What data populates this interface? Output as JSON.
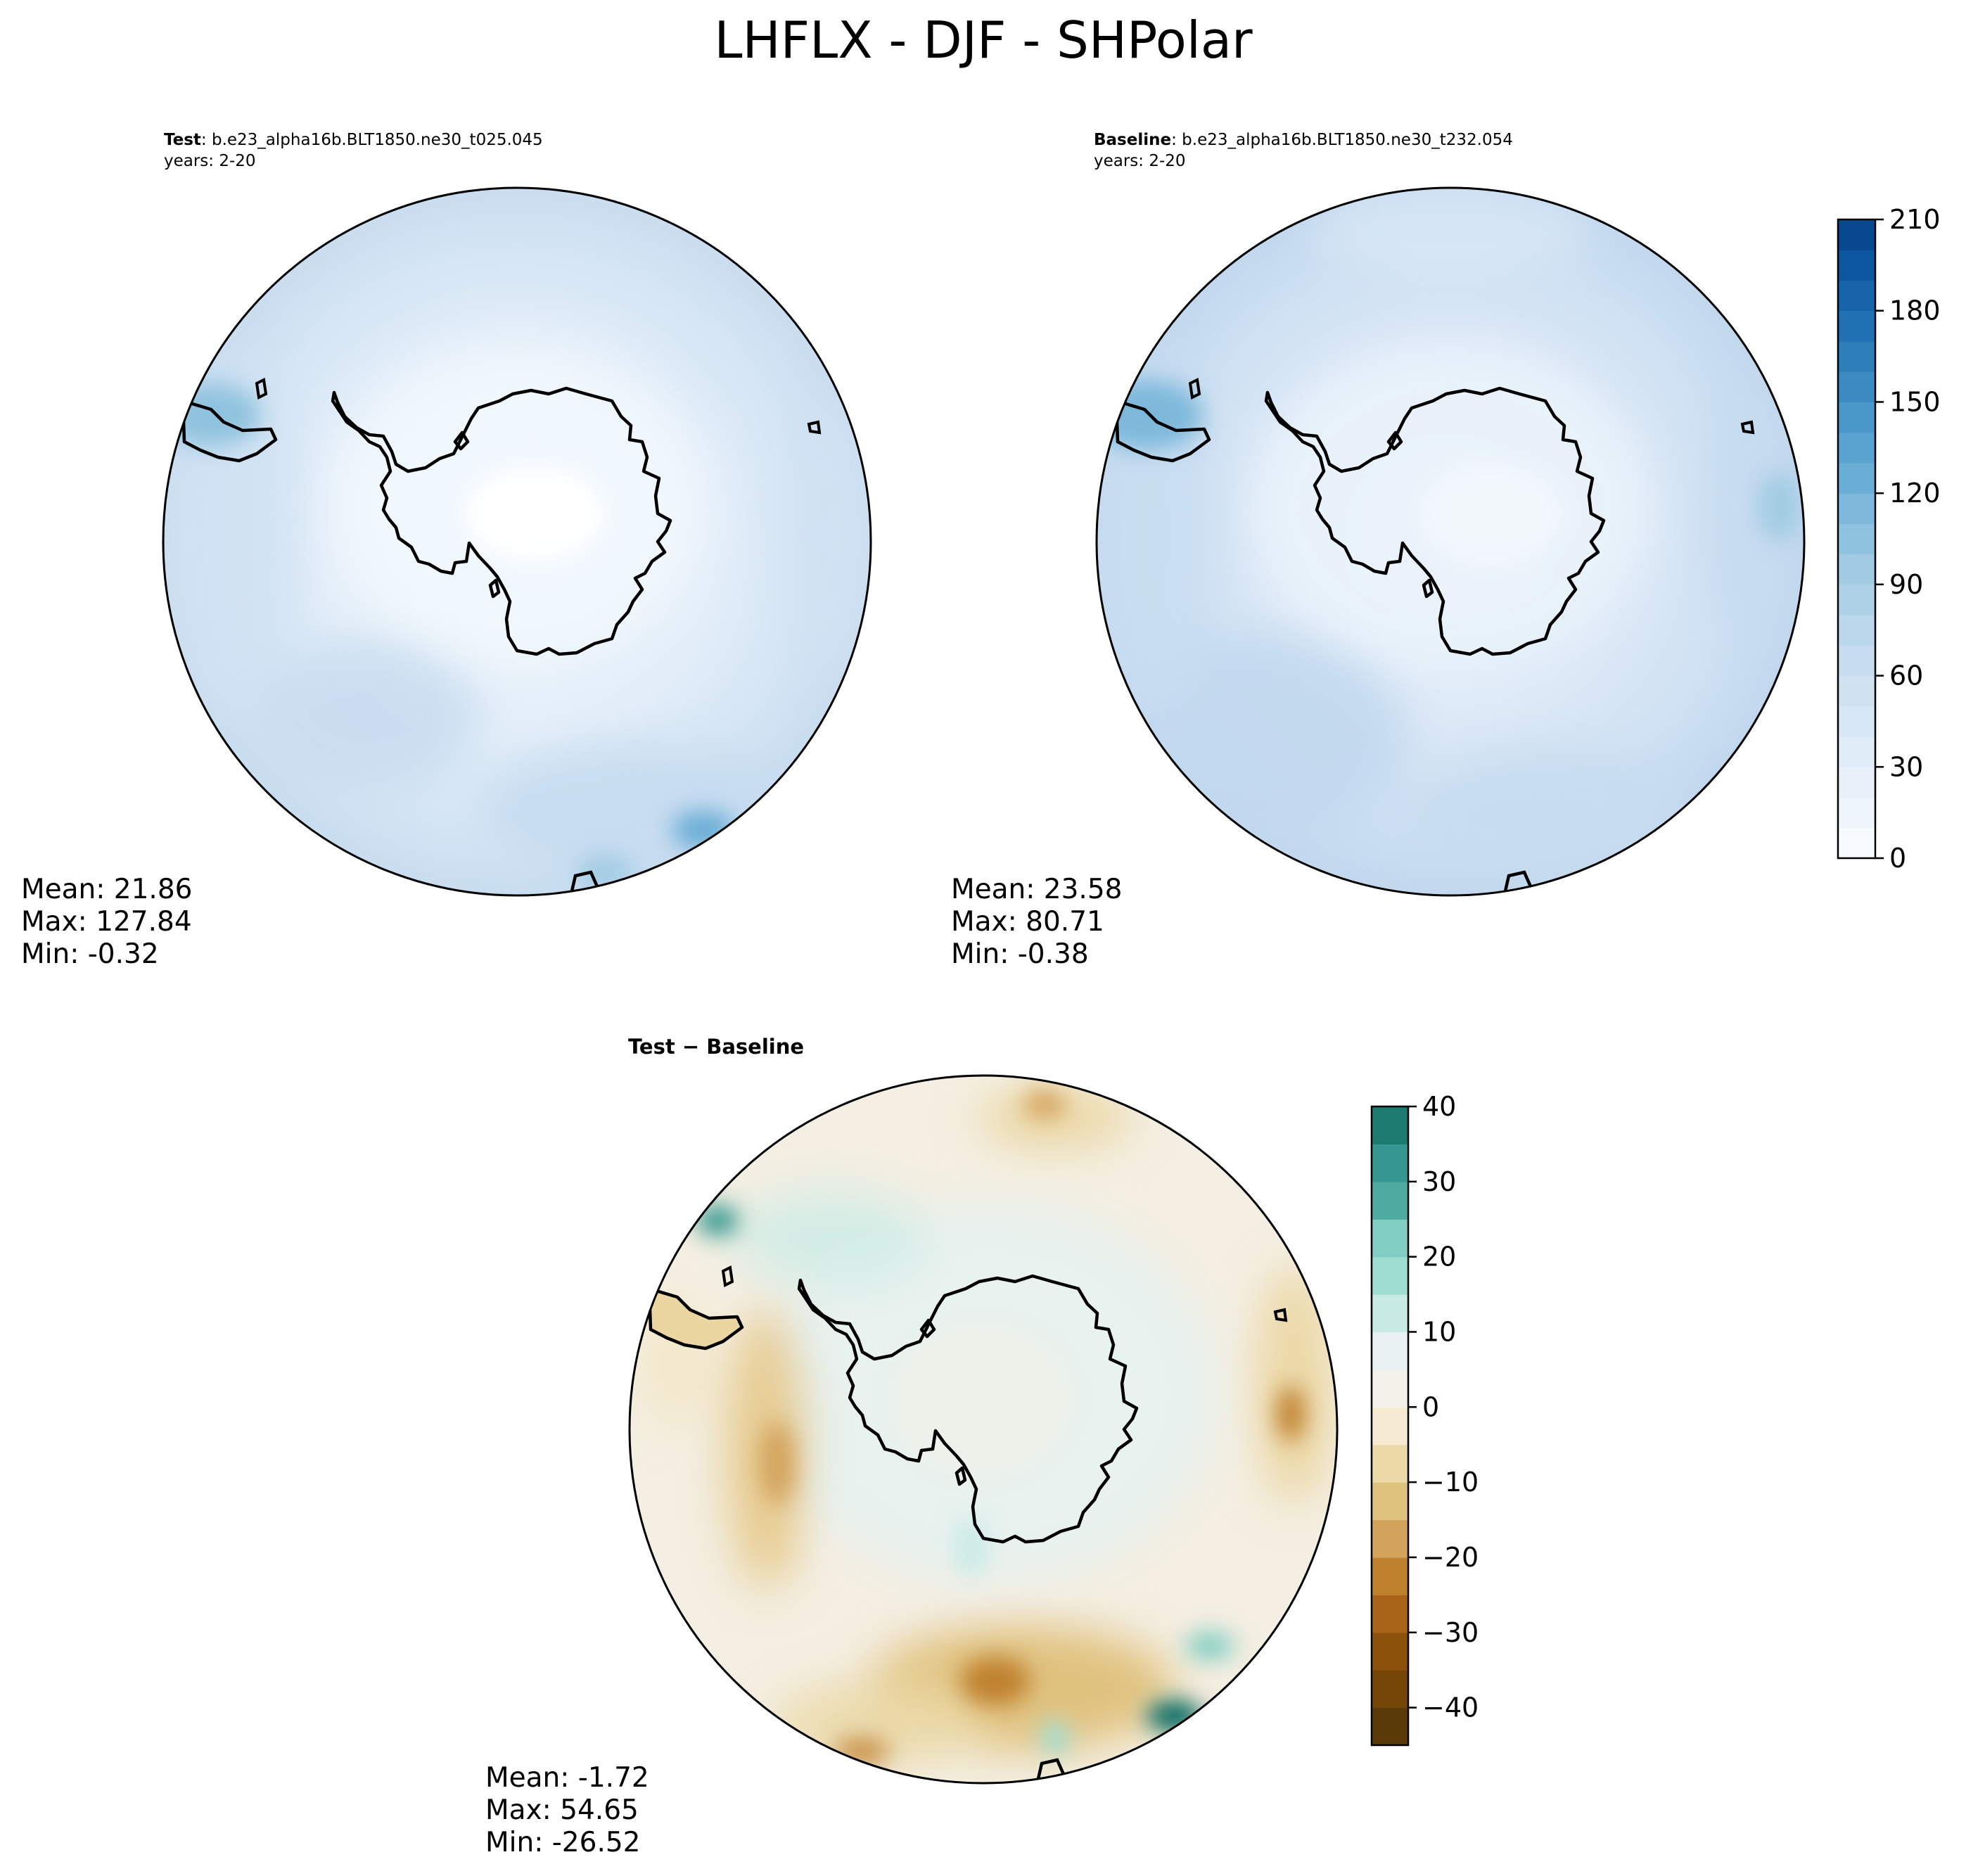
{
  "title": "LHFLX - DJF - SHPolar",
  "panels": [
    {
      "id": "test",
      "label_bold": "Test",
      "label_rest": ": b.e23_alpha16b.BLT1850.ne30_t025.045",
      "years": "years: 2-20",
      "stats": {
        "mean": "Mean: 21.86",
        "max": "Max: 127.84",
        "min": "Min: -0.32"
      }
    },
    {
      "id": "baseline",
      "label_bold": "Baseline",
      "label_rest": ": b.e23_alpha16b.BLT1850.ne30_t232.054",
      "years": "years: 2-20",
      "stats": {
        "mean": "Mean: 23.58",
        "max": "Max: 80.71",
        "min": "Min: -0.38"
      }
    },
    {
      "id": "diff",
      "title": "Test − Baseline",
      "stats": {
        "mean": "Mean: -1.72",
        "max": "Max: 54.65",
        "min": "Min: -26.52"
      }
    }
  ],
  "chart_data": [
    {
      "type": "heatmap",
      "projection": "south-polar-stereographic",
      "colormap": "Blues",
      "panels": [
        "Test",
        "Baseline"
      ],
      "colorbar": {
        "range": [
          0,
          210
        ],
        "levels": [
          0,
          10,
          20,
          30,
          40,
          50,
          60,
          70,
          80,
          90,
          100,
          110,
          120,
          130,
          140,
          150,
          160,
          170,
          180,
          190,
          200,
          210
        ],
        "ticks": [
          "0",
          "30",
          "60",
          "90",
          "120",
          "150",
          "180",
          "210"
        ],
        "colors": [
          "#f7fbff",
          "#eff5fc",
          "#e8f1fa",
          "#e0ecf8",
          "#d8e7f5",
          "#d0e1f2",
          "#c8dcf0",
          "#bcd7ec",
          "#afd1e7",
          "#a0cbe2",
          "#8fc2de",
          "#7db8da",
          "#6aaed6",
          "#5aa2cf",
          "#4a98c9",
          "#3b8bc2",
          "#2e7ebc",
          "#2171b5",
          "#1764ab",
          "#0d57a1",
          "#08488e",
          "#083a7a"
        ]
      }
    },
    {
      "type": "heatmap",
      "projection": "south-polar-stereographic",
      "colormap": "BrBG",
      "panels": [
        "Test − Baseline"
      ],
      "colorbar": {
        "range": [
          -45,
          40
        ],
        "levels": [
          -45,
          -40,
          -35,
          -30,
          -25,
          -20,
          -15,
          -10,
          -5,
          0,
          5,
          10,
          15,
          20,
          25,
          30,
          35,
          40
        ],
        "ticks": [
          "40",
          "30",
          "20",
          "10",
          "0",
          "−10",
          "−20",
          "−30",
          "−40"
        ],
        "colors": [
          "#5b3a0a",
          "#744608",
          "#8c510a",
          "#a76419",
          "#bf812d",
          "#d3a35b",
          "#dfc27d",
          "#ebd9a8",
          "#f6ecd4",
          "#f3f2ea",
          "#e8f2f0",
          "#c7eae5",
          "#9fddd3",
          "#80cdc1",
          "#4fab9f",
          "#35978f",
          "#1b7b71",
          "#01665e",
          "#004c42"
        ]
      }
    }
  ]
}
